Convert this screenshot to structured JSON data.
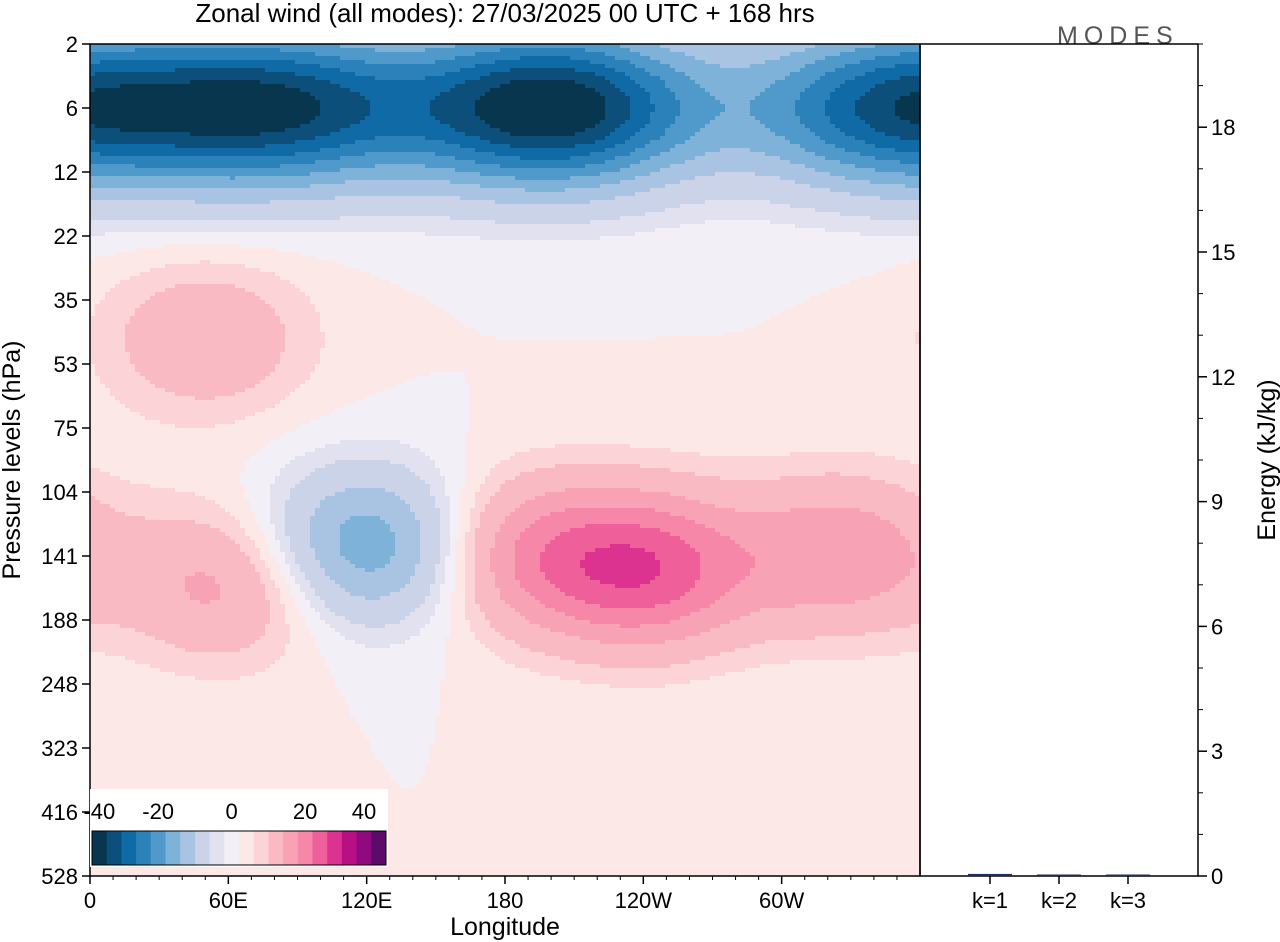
{
  "title": "Zonal wind (all modes):  27/03/2025  00 UTC  + 168 hrs",
  "logo": "MODES",
  "colors": {
    "negative": [
      "#08364f",
      "#0b4f7a",
      "#0f6aa6",
      "#2b82bb",
      "#4f9acb",
      "#7fb2d8",
      "#a9c4e2",
      "#cbd3e8",
      "#e2e1ef",
      "#f3eff6"
    ],
    "positive": [
      "#fde8e8",
      "#fcd3d6",
      "#fabac3",
      "#f8a2b6",
      "#f687a8",
      "#ef5f9a",
      "#dc3290",
      "#b80f85",
      "#8f0a7f",
      "#5c0b6b"
    ]
  },
  "chart_data": [
    {
      "type": "heatmap",
      "xlabel": "Longitude",
      "ylabel": "Pressure levels (hPa)",
      "x_ticks": [
        "0",
        "60E",
        "120E",
        "180",
        "120W",
        "60W"
      ],
      "y_ticks": [
        "2",
        "6",
        "12",
        "22",
        "35",
        "53",
        "75",
        "104",
        "141",
        "188",
        "248",
        "323",
        "416",
        "528"
      ],
      "colorbar": {
        "ticks": [
          "-40",
          "-20",
          "0",
          "20",
          "40"
        ],
        "levels": [
          -45,
          -40,
          -35,
          -30,
          -25,
          -20,
          -15,
          -10,
          -5,
          -2.5,
          0,
          2.5,
          5,
          10,
          15,
          20,
          25,
          30,
          35,
          40,
          45
        ]
      },
      "features": [
        {
          "lon": 200,
          "level": 6,
          "value": -45
        },
        {
          "lon": 80,
          "level": 6,
          "value": -38
        },
        {
          "lon": 350,
          "level": 6,
          "value": -35
        },
        {
          "lon": 120,
          "level": 135,
          "value": -20
        },
        {
          "lon": 242,
          "level": 150,
          "value": 22
        },
        {
          "lon": 190,
          "level": 140,
          "value": 14
        },
        {
          "lon": 325,
          "level": 140,
          "value": 14
        },
        {
          "lon": 60,
          "level": 160,
          "value": 12
        },
        {
          "lon": 50,
          "level": 45,
          "value": 9
        }
      ]
    },
    {
      "type": "bar",
      "categories": [
        "k=1",
        "k=2",
        "k=3"
      ],
      "values": [
        0.05,
        0.03,
        0.03
      ],
      "ylabel": "Energy (kJ/kg)",
      "y_ticks": [
        "0",
        "3",
        "6",
        "9",
        "12",
        "15",
        "18"
      ],
      "ylim": [
        0,
        20
      ]
    }
  ]
}
